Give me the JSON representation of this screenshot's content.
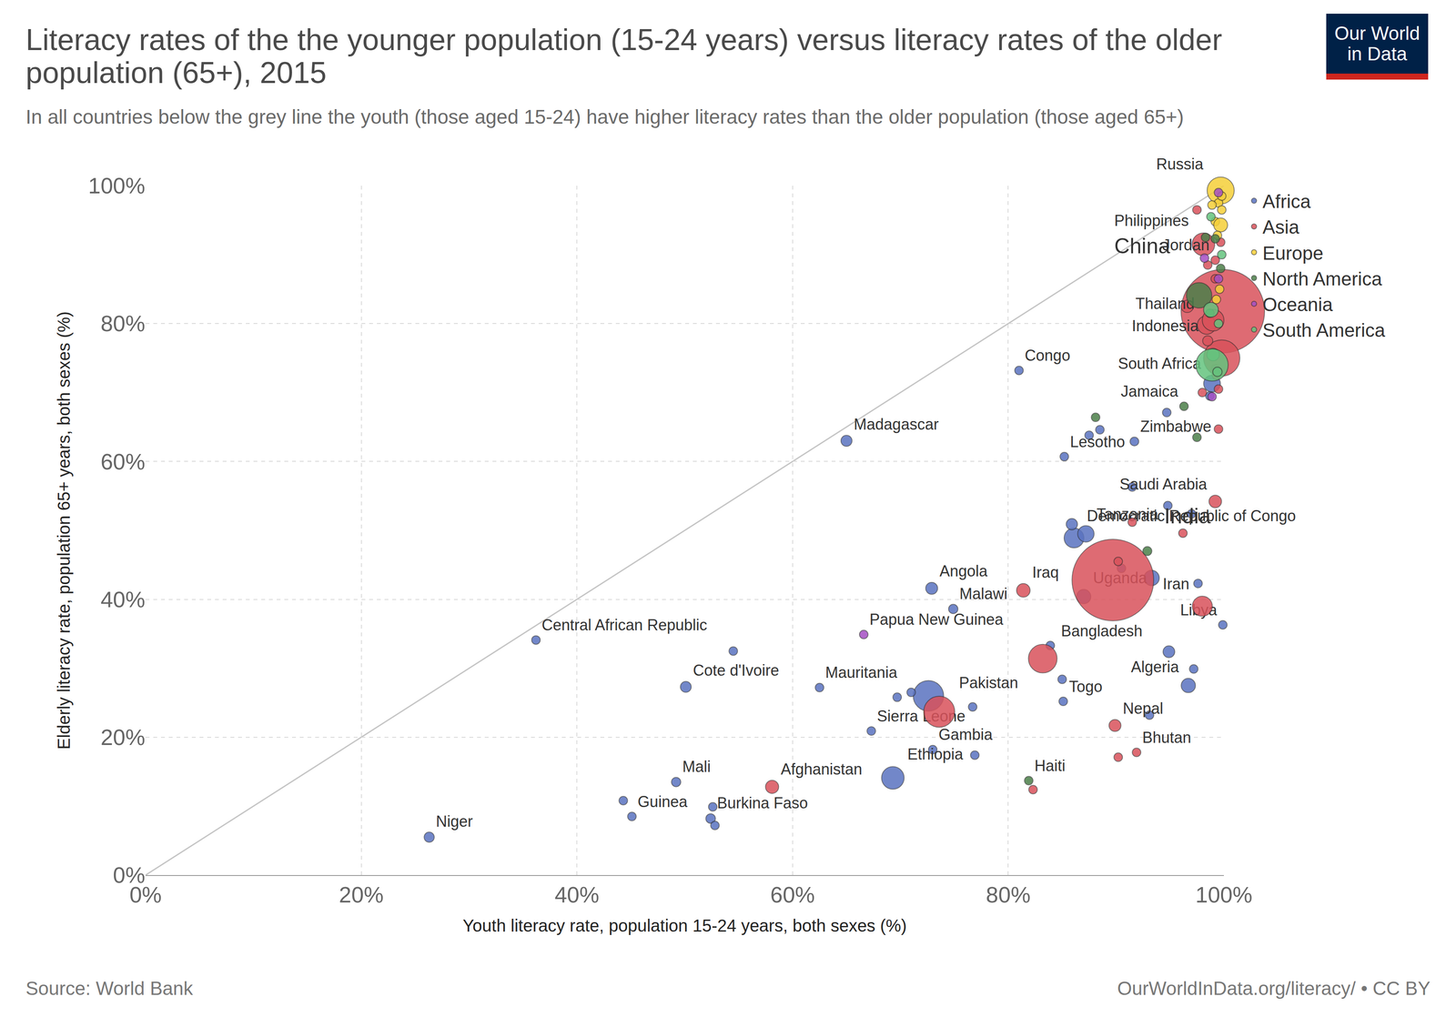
{
  "chart_data": {
    "type": "scatter",
    "title": "Literacy rates of the the younger population (15-24 years) versus literacy rates of the older population (65+), 2015",
    "subtitle": "In all countries below the grey line the youth (those aged 15-24) have higher literacy rates than the older population (those aged 65+)",
    "x_label": "Youth literacy rate, population 15-24 years, both sexes (%)",
    "y_label": "Elderly literacy rate, population 65+ years, both sexes (%)",
    "source": "Source: World Bank",
    "credit": "OurWorldInData.org/literacy/ • CC BY",
    "logo": "Our World in Data",
    "xlim": [
      0,
      100
    ],
    "ylim": [
      0,
      100
    ],
    "xticks": [
      {
        "value": 0,
        "label": "0%"
      },
      {
        "value": 20,
        "label": "20%"
      },
      {
        "value": 40,
        "label": "40%"
      },
      {
        "value": 60,
        "label": "60%"
      },
      {
        "value": 80,
        "label": "80%"
      },
      {
        "value": 100,
        "label": "100%"
      }
    ],
    "yticks": [
      {
        "value": 0,
        "label": "0%"
      },
      {
        "value": 20,
        "label": "20%"
      },
      {
        "value": 40,
        "label": "40%"
      },
      {
        "value": 60,
        "label": "60%"
      },
      {
        "value": 80,
        "label": "80%"
      },
      {
        "value": 100,
        "label": "100%"
      }
    ],
    "grid": true,
    "legend": "right",
    "marker": "circle",
    "series": [
      {
        "name": "Africa",
        "color": "#5A73C0",
        "labels": [
          "Congo",
          "Madagascar",
          "Lesotho",
          "Zimbabwe",
          "South Africa",
          "Democratic Republic of Congo",
          "Tanzania",
          "Uganda",
          "Angola",
          "Malawi",
          "Libya",
          "Central African Republic",
          "Cote d'Ivoire",
          "Mauritania",
          "Togo",
          "Algeria",
          "Sierra Leone",
          "Gambia",
          "Ethiopia",
          "Mali",
          "Guinea",
          "Burkina Faso",
          "Niger",
          null,
          null,
          null,
          null,
          null,
          null,
          null,
          null,
          null,
          null,
          null,
          null,
          null,
          null,
          null,
          null,
          null,
          null,
          null,
          null,
          null,
          null,
          null,
          null,
          null,
          null
        ],
        "x": [
          81,
          65,
          85.2,
          91.7,
          98.9,
          86.1,
          87.2,
          87,
          72.9,
          74.9,
          99.9,
          36.2,
          50.1,
          62.5,
          85.1,
          96.7,
          67.3,
          73,
          69.3,
          49.2,
          45.1,
          52.4,
          26.3,
          72.6,
          85.9,
          93.3,
          90.5,
          54.5,
          44.3,
          52.6,
          52.8,
          69.7,
          71,
          76.7,
          76.9,
          85,
          83.9,
          94.9,
          97.2,
          93.1,
          87.5,
          88.5,
          94.7,
          94.8,
          97,
          97.6,
          98.7,
          91.5,
          99.2
        ],
        "y": [
          73.2,
          63,
          60.7,
          62.9,
          71.3,
          48.9,
          49.5,
          40.4,
          41.6,
          38.6,
          36.3,
          34.1,
          27.3,
          27.2,
          25.2,
          27.5,
          20.9,
          18.2,
          14.1,
          13.5,
          8.5,
          8.2,
          5.5,
          26,
          50.9,
          43.1,
          44.5,
          32.5,
          10.8,
          9.9,
          7.2,
          25.8,
          26.5,
          24.4,
          17.4,
          28.4,
          33.3,
          32.4,
          29.9,
          23.2,
          63.8,
          64.6,
          67.1,
          53.6,
          52.4,
          42.3,
          69.5,
          56.3,
          73.5
        ],
        "sizes": [
          4.9,
          24,
          2.2,
          15,
          55,
          77,
          53,
          40,
          28,
          17,
          6,
          4.5,
          23,
          4,
          7,
          40,
          7,
          2,
          100,
          17,
          12,
          18,
          20,
          182,
          25,
          46,
          10,
          2,
          4,
          3,
          4,
          4,
          11,
          11,
          1.5,
          3,
          5,
          27,
          4,
          2,
          4,
          1.5,
          2,
          1,
          2,
          1,
          2,
          1,
          11
        ]
      },
      {
        "name": "Asia",
        "color": "#D9525B",
        "labels": [
          "Philippines",
          "Jordan",
          "China",
          "Thailand",
          "Indonesia",
          "Saudi Arabia",
          "India",
          "Iraq",
          "Iran",
          "Bangladesh",
          "Pakistan",
          "Nepal",
          "Bhutan",
          "Afghanistan",
          null,
          null,
          null,
          null,
          null,
          null,
          null,
          null,
          null,
          null,
          null,
          null,
          null,
          null,
          null,
          null
        ],
        "x": [
          98.1,
          99.2,
          99.9,
          98.4,
          99.8,
          99.2,
          89.7,
          81.4,
          98,
          83.2,
          73.6,
          89.9,
          91.9,
          58.1,
          90.2,
          82.3,
          91.5,
          96.2,
          99.5,
          96.6,
          99,
          98.5,
          99.3,
          99.5,
          98,
          97.5,
          99.7,
          98.5,
          99.2,
          90.2
        ],
        "y": [
          91.5,
          89.2,
          81.8,
          79.8,
          75,
          54.2,
          42.8,
          41.3,
          39,
          31.4,
          23.7,
          21.7,
          17.8,
          12.8,
          17.1,
          12.4,
          51.2,
          49.6,
          64.7,
          82.5,
          80.5,
          77.5,
          72.5,
          70.5,
          70,
          96.5,
          91.8,
          88.5,
          86.5,
          45.5
        ],
        "sizes": [
          101,
          9,
          1371,
          68,
          258,
          31,
          1310,
          36,
          79,
          161,
          189,
          28,
          0.8,
          34,
          1,
          1,
          2,
          10,
          1,
          30,
          92,
          20,
          10,
          2,
          5,
          2,
          3,
          6,
          8,
          4
        ]
      },
      {
        "name": "Europe",
        "color": "#F5D039",
        "labels": [
          "Russia",
          null,
          null,
          null,
          null,
          null,
          null,
          null,
          null,
          null
        ],
        "x": [
          99.7,
          99.5,
          99.8,
          99.2,
          99.7,
          99.6,
          99.3,
          99.8,
          98.9,
          99.4
        ],
        "y": [
          99.3,
          97.5,
          96.5,
          94.8,
          94.3,
          85,
          83.5,
          98.5,
          97.2,
          92.8
        ],
        "sizes": [
          144,
          10,
          5,
          3,
          38,
          3,
          4,
          2,
          1,
          2
        ]
      },
      {
        "name": "North America",
        "color": "#4C7F4A",
        "labels": [
          "Jamaica",
          "Haiti",
          null,
          null,
          null,
          null,
          null,
          null,
          null,
          null
        ],
        "x": [
          96.3,
          81.9,
          92.9,
          88.1,
          97.5,
          97.7,
          99.2,
          98.7,
          99.7,
          98.3
        ],
        "y": [
          68,
          13.7,
          47,
          66.4,
          63.5,
          84.1,
          92.3,
          81.5,
          88,
          92.5
        ],
        "sizes": [
          2.8,
          10.7,
          16,
          1,
          2,
          127,
          3,
          5,
          1,
          1
        ]
      },
      {
        "name": "Oceania",
        "color": "#A550C4",
        "labels": [
          "Papua New Guinea",
          null,
          null,
          null,
          null
        ],
        "x": [
          66.6,
          99.5,
          98.9,
          98.2,
          99.5
        ],
        "y": [
          34.9,
          86.5,
          69.4,
          89.5,
          99
        ],
        "sizes": [
          7.6,
          1,
          1,
          1,
          1
        ]
      },
      {
        "name": "South America",
        "color": "#65C47E",
        "labels": [
          null,
          null,
          null,
          null,
          null,
          null,
          null
        ],
        "x": [
          98.8,
          99.5,
          99,
          98.9,
          99.4,
          98.8,
          99.8
        ],
        "y": [
          82,
          80,
          75.5,
          74,
          73,
          95.5,
          90
        ],
        "sizes": [
          43,
          11,
          31,
          205,
          17,
          2,
          1
        ]
      }
    ]
  }
}
